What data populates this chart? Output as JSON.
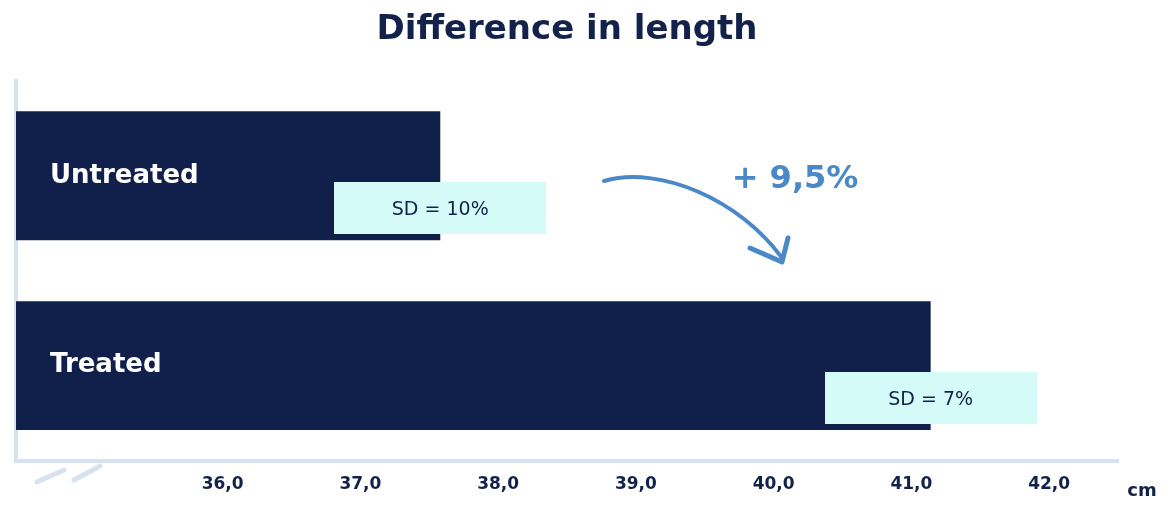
{
  "chart_data": {
    "type": "bar",
    "orientation": "horizontal",
    "title": "Difference in length",
    "xlabel": "cm",
    "categories": [
      "Untreated",
      "Treated"
    ],
    "series": [
      {
        "color": "#11204a",
        "values": [
          37.58,
          41.14
        ]
      }
    ],
    "xlim": [
      34.5,
      42.5
    ],
    "xticks": [
      {
        "value": 36,
        "label": "36,0"
      },
      {
        "value": 37,
        "label": "37,0"
      },
      {
        "value": 38,
        "label": "38,0"
      },
      {
        "value": 39,
        "label": "39,0"
      },
      {
        "value": 40,
        "label": "40,0"
      },
      {
        "value": 41,
        "label": "41,0"
      },
      {
        "value": 42,
        "label": "42,0"
      }
    ],
    "annotations": [
      {
        "text": "SD = 10%",
        "x": 37.58,
        "y": "Untreated"
      },
      {
        "text": "SD = 7%",
        "x": 41.14,
        "y": "Treated"
      },
      "+ 9,5%"
    ],
    "grid": false,
    "legend": false
  }
}
